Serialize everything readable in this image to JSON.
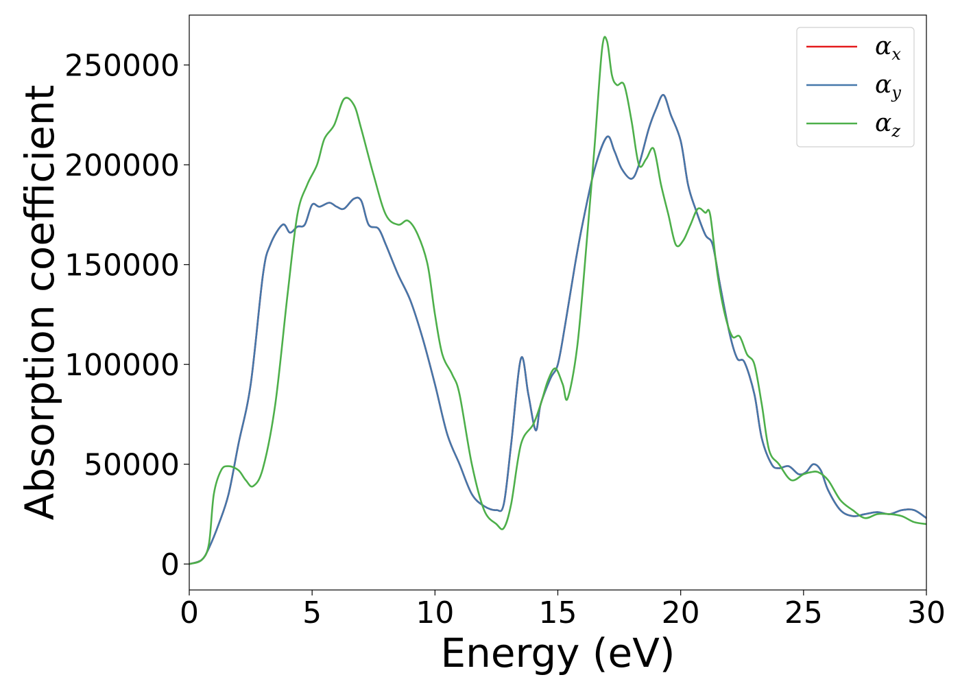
{
  "chart_data": {
    "type": "line",
    "xlabel": "Energy (eV)",
    "ylabel": "Absorption coefficient",
    "xlim": [
      0,
      30
    ],
    "ylim": [
      -13000,
      275000
    ],
    "xticks": [
      0,
      5,
      10,
      15,
      20,
      25,
      30
    ],
    "xtick_labels": [
      "0",
      "5",
      "10",
      "15",
      "20",
      "25",
      "30"
    ],
    "yticks": [
      0,
      50000,
      100000,
      150000,
      200000,
      250000
    ],
    "ytick_labels": [
      "0",
      "50000",
      "100000",
      "150000",
      "200000",
      "250000"
    ],
    "grid": false,
    "legend_position": "top-right",
    "series": [
      {
        "name": "α",
        "subscript": "x",
        "color": "#e41a1c",
        "x": [
          0,
          0.5,
          0.8,
          1.2,
          1.6,
          2.0,
          2.5,
          3.0,
          3.3,
          3.8,
          4.1,
          4.4,
          4.7,
          5.0,
          5.3,
          5.7,
          6.0,
          6.3,
          6.7,
          7.0,
          7.3,
          7.7,
          8.0,
          8.5,
          9.0,
          9.5,
          10.0,
          10.5,
          11.0,
          11.5,
          12.0,
          12.5,
          12.8,
          13.1,
          13.5,
          13.8,
          14.1,
          14.3,
          14.7,
          15.0,
          15.3,
          15.7,
          16.0,
          16.5,
          17.0,
          17.3,
          17.6,
          18.0,
          18.3,
          18.7,
          19.0,
          19.3,
          19.6,
          20.0,
          20.3,
          20.6,
          21.0,
          21.3,
          21.6,
          22.0,
          22.3,
          22.6,
          23.0,
          23.3,
          23.7,
          24.0,
          24.4,
          24.8,
          25.1,
          25.4,
          25.7,
          26.0,
          26.5,
          27.0,
          27.5,
          28.0,
          28.5,
          29.0,
          29.5,
          30.0
        ],
        "y": [
          0,
          2000,
          8000,
          20000,
          35000,
          60000,
          90000,
          145000,
          160000,
          170000,
          166000,
          169000,
          170000,
          180000,
          179000,
          181000,
          179000,
          178000,
          183000,
          182000,
          170000,
          168000,
          160000,
          145000,
          132000,
          113000,
          90000,
          65000,
          50000,
          35000,
          29000,
          27000,
          30000,
          60000,
          103000,
          85000,
          67000,
          80000,
          93000,
          100000,
          120000,
          150000,
          170000,
          198000,
          214000,
          207000,
          198000,
          193000,
          200000,
          218000,
          228000,
          235000,
          225000,
          212000,
          190000,
          178000,
          165000,
          160000,
          140000,
          115000,
          103000,
          101000,
          85000,
          63000,
          50000,
          48000,
          49000,
          45000,
          46000,
          50000,
          47000,
          37000,
          27000,
          24000,
          25000,
          26000,
          25000,
          27000,
          27000,
          23000
        ]
      },
      {
        "name": "α",
        "subscript": "y",
        "color": "#4477aa",
        "x": [
          0,
          0.5,
          0.8,
          1.2,
          1.6,
          2.0,
          2.5,
          3.0,
          3.3,
          3.8,
          4.1,
          4.4,
          4.7,
          5.0,
          5.3,
          5.7,
          6.0,
          6.3,
          6.7,
          7.0,
          7.3,
          7.7,
          8.0,
          8.5,
          9.0,
          9.5,
          10.0,
          10.5,
          11.0,
          11.5,
          12.0,
          12.5,
          12.8,
          13.1,
          13.5,
          13.8,
          14.1,
          14.3,
          14.7,
          15.0,
          15.3,
          15.7,
          16.0,
          16.5,
          17.0,
          17.3,
          17.6,
          18.0,
          18.3,
          18.7,
          19.0,
          19.3,
          19.6,
          20.0,
          20.3,
          20.6,
          21.0,
          21.3,
          21.6,
          22.0,
          22.3,
          22.6,
          23.0,
          23.3,
          23.7,
          24.0,
          24.4,
          24.8,
          25.1,
          25.4,
          25.7,
          26.0,
          26.5,
          27.0,
          27.5,
          28.0,
          28.5,
          29.0,
          29.5,
          30.0
        ],
        "y": [
          0,
          2000,
          8000,
          20000,
          35000,
          60000,
          90000,
          145000,
          160000,
          170000,
          166000,
          169000,
          170000,
          180000,
          179000,
          181000,
          179000,
          178000,
          183000,
          182000,
          170000,
          168000,
          160000,
          145000,
          132000,
          113000,
          90000,
          65000,
          50000,
          35000,
          29000,
          27000,
          30000,
          60000,
          103000,
          85000,
          67000,
          80000,
          93000,
          100000,
          120000,
          150000,
          170000,
          198000,
          214000,
          207000,
          198000,
          193000,
          200000,
          218000,
          228000,
          235000,
          225000,
          212000,
          190000,
          178000,
          165000,
          160000,
          140000,
          115000,
          103000,
          101000,
          85000,
          63000,
          50000,
          48000,
          49000,
          45000,
          46000,
          50000,
          47000,
          37000,
          27000,
          24000,
          25000,
          26000,
          25000,
          27000,
          27000,
          23000
        ]
      },
      {
        "name": "α",
        "subscript": "z",
        "color": "#4daf4a",
        "x": [
          0,
          0.5,
          0.8,
          1.0,
          1.3,
          1.6,
          2.0,
          2.3,
          2.6,
          3.0,
          3.5,
          4.0,
          4.4,
          4.8,
          5.2,
          5.5,
          5.9,
          6.3,
          6.7,
          7.0,
          7.5,
          8.0,
          8.5,
          8.9,
          9.3,
          9.7,
          10.0,
          10.3,
          10.7,
          11.0,
          11.5,
          12.0,
          12.5,
          12.8,
          13.1,
          13.5,
          14.0,
          14.3,
          14.6,
          14.9,
          15.2,
          15.4,
          15.8,
          16.2,
          16.5,
          16.8,
          17.0,
          17.2,
          17.4,
          17.7,
          18.0,
          18.3,
          18.6,
          18.9,
          19.2,
          19.5,
          19.8,
          20.1,
          20.4,
          20.7,
          21.0,
          21.2,
          21.5,
          21.8,
          22.1,
          22.4,
          22.7,
          23.0,
          23.3,
          23.6,
          24.0,
          24.5,
          25.0,
          25.3,
          25.6,
          26.0,
          26.5,
          27.0,
          27.5,
          28.0,
          28.5,
          29.0,
          29.5,
          30.0
        ],
        "y": [
          0,
          2000,
          10000,
          35000,
          47000,
          49000,
          47000,
          42000,
          39000,
          48000,
          80000,
          135000,
          175000,
          190000,
          200000,
          213000,
          220000,
          233000,
          230000,
          218000,
          195000,
          175000,
          170000,
          172000,
          165000,
          150000,
          125000,
          105000,
          95000,
          85000,
          50000,
          27000,
          20000,
          18000,
          30000,
          60000,
          70000,
          80000,
          92000,
          98000,
          90000,
          83000,
          110000,
          165000,
          210000,
          258000,
          262000,
          245000,
          240000,
          240000,
          222000,
          200000,
          203000,
          208000,
          190000,
          175000,
          160000,
          162000,
          170000,
          178000,
          176000,
          175000,
          145000,
          125000,
          114000,
          114000,
          105000,
          100000,
          80000,
          57000,
          50000,
          42000,
          45000,
          46000,
          46000,
          42000,
          32000,
          27000,
          23000,
          25000,
          25000,
          24000,
          21000,
          20000
        ]
      }
    ]
  }
}
